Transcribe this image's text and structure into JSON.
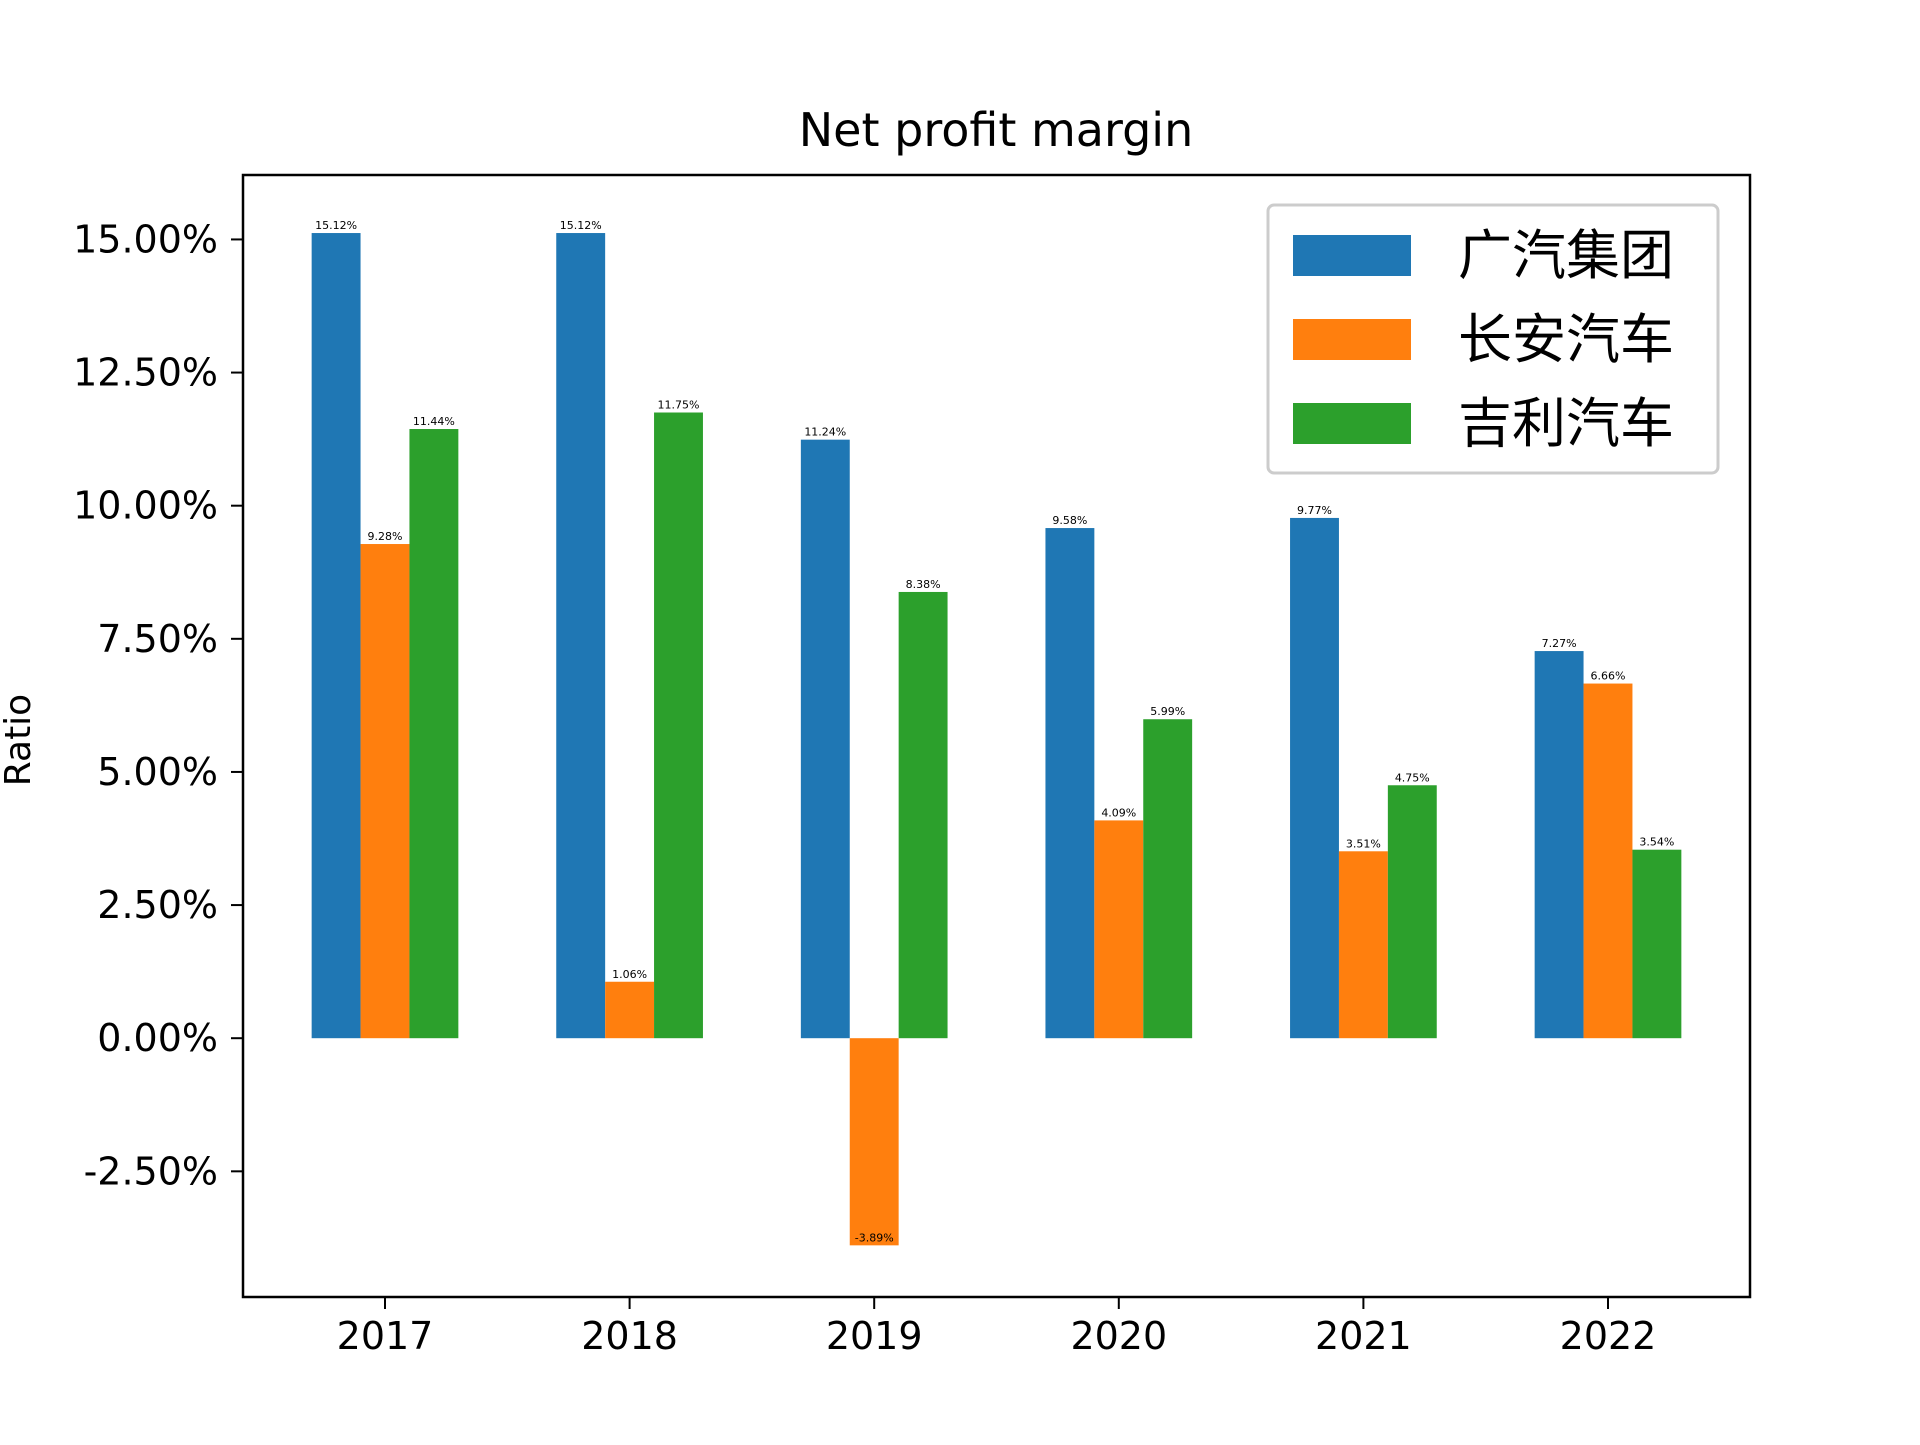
{
  "chart_data": {
    "type": "bar",
    "title": "Net profit margin",
    "xlabel": "",
    "ylabel": "Ratio",
    "categories": [
      "2017",
      "2018",
      "2019",
      "2020",
      "2021",
      "2022"
    ],
    "series": [
      {
        "name": "广汽集团",
        "color": "#1f77b4",
        "values": [
          15.12,
          15.12,
          11.24,
          9.58,
          9.77,
          7.27
        ]
      },
      {
        "name": "长安汽车",
        "color": "#ff7f0e",
        "values": [
          9.28,
          1.06,
          -3.89,
          4.09,
          3.51,
          6.66
        ]
      },
      {
        "name": "吉利汽车",
        "color": "#2ca02c",
        "values": [
          11.44,
          11.75,
          8.38,
          5.99,
          4.75,
          3.54
        ]
      }
    ],
    "ylim": [
      -4.86,
      16.21
    ],
    "yticks": [
      -2.5,
      0,
      2.5,
      5,
      7.5,
      10,
      12.5,
      15
    ],
    "ytick_labels": [
      "-2.50%",
      "0.00%",
      "2.50%",
      "5.00%",
      "7.50%",
      "10.00%",
      "12.50%",
      "15.00%"
    ],
    "value_label_suffix": "%",
    "legend_position": "top-right",
    "grid": false
  }
}
